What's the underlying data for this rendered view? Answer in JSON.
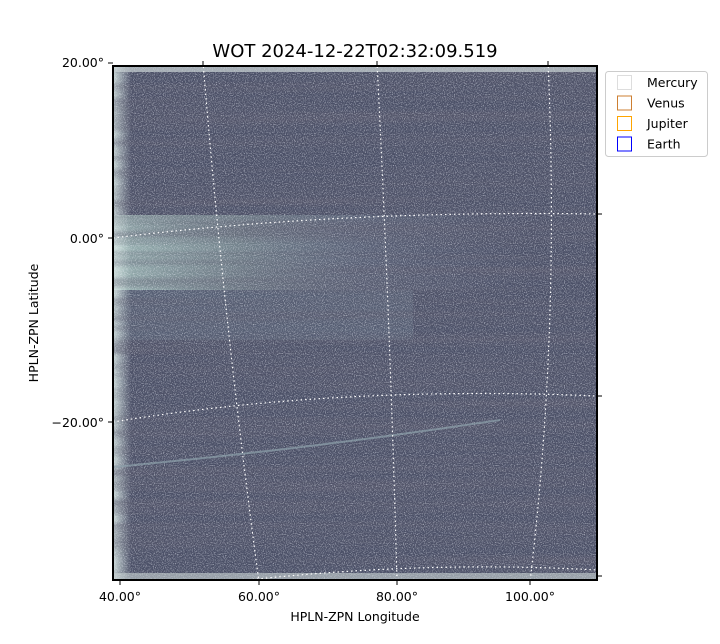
{
  "chart_data": {
    "type": "heatmap",
    "title": "WOT 2024-12-22T02:32:09.519",
    "xlabel": "HPLN-ZPN Longitude",
    "ylabel": "HPLN-ZPN Latitude",
    "x_ticks": [
      "40.00°",
      "60.00°",
      "80.00°",
      "100.00°"
    ],
    "y_ticks": [
      "20.00°",
      "0.00°",
      "−20.00°"
    ],
    "colormap": "bone",
    "grid": true,
    "legend": {
      "placement": "outside-top-right",
      "entries": [
        {
          "label": "Mercury",
          "color": "#dddddd"
        },
        {
          "label": "Venus",
          "color": "#cd7f32"
        },
        {
          "label": "Jupiter",
          "color": "#ffa500"
        },
        {
          "label": "Earth",
          "color": "#0000ff"
        }
      ]
    }
  }
}
